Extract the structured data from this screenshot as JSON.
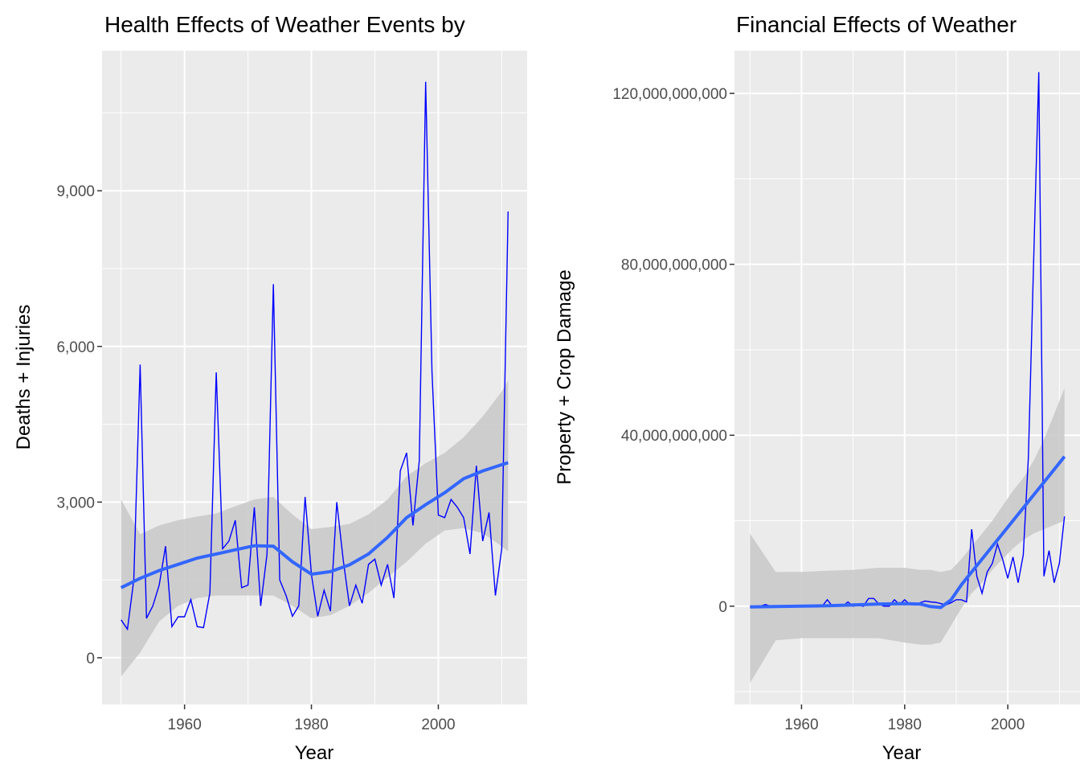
{
  "chart_data": [
    {
      "type": "line",
      "title": "Health Effects of Weather Events by",
      "xlabel": "Year",
      "ylabel": "Deaths + Injuries",
      "xlim": [
        1947,
        2014
      ],
      "ylim": [
        -900,
        11700
      ],
      "x_ticks": [
        1960,
        1980,
        2000
      ],
      "x_tick_labels": [
        "1960",
        "1980",
        "2000"
      ],
      "y_ticks": [
        0,
        3000,
        6000,
        9000
      ],
      "y_tick_labels": [
        "0",
        "3,000",
        "6,000",
        "9,000"
      ],
      "grid": true,
      "line_color": "#0000ff",
      "smooth_color": "#3366ff",
      "band_color": "#c8c8c8",
      "series": [
        {
          "x": [
            1950,
            1951,
            1952,
            1953,
            1954,
            1955,
            1956,
            1957,
            1958,
            1959,
            1960,
            1961,
            1962,
            1963,
            1964,
            1965,
            1966,
            1967,
            1968,
            1969,
            1970,
            1971,
            1972,
            1973,
            1974,
            1975,
            1976,
            1977,
            1978,
            1979,
            1980,
            1981,
            1982,
            1983,
            1984,
            1985,
            1986,
            1987,
            1988,
            1989,
            1990,
            1991,
            1992,
            1993,
            1994,
            1995,
            1996,
            1997,
            1998,
            1999,
            2000,
            2001,
            2002,
            2003,
            2004,
            2005,
            2006,
            2007,
            2008,
            2009,
            2010,
            2011
          ],
          "values": [
            730,
            550,
            1500,
            5650,
            760,
            1000,
            1400,
            2150,
            600,
            790,
            790,
            1120,
            600,
            580,
            1250,
            5500,
            2100,
            2250,
            2650,
            1350,
            1400,
            2900,
            1000,
            2000,
            7200,
            1500,
            1200,
            800,
            1000,
            3100,
            1600,
            800,
            1300,
            900,
            3000,
            1900,
            1000,
            1400,
            1050,
            1800,
            1900,
            1400,
            1800,
            1150,
            3600,
            3950,
            2550,
            3800,
            11100,
            5500,
            2750,
            2700,
            3050,
            2900,
            2700,
            2000,
            3700,
            2250,
            2800,
            1200,
            2100,
            8600
          ]
        },
        {
          "name": "smooth",
          "x": [
            1950,
            1953,
            1956,
            1959,
            1962,
            1965,
            1968,
            1971,
            1974,
            1977,
            1980,
            1983,
            1986,
            1989,
            1992,
            1995,
            1998,
            2001,
            2004,
            2007,
            2010,
            2011
          ],
          "values": [
            1350,
            1530,
            1680,
            1800,
            1920,
            2000,
            2080,
            2160,
            2150,
            1850,
            1610,
            1660,
            1790,
            2000,
            2320,
            2700,
            2950,
            3180,
            3450,
            3600,
            3720,
            3760
          ],
          "band_low": [
            -360,
            100,
            700,
            1000,
            1150,
            1200,
            1200,
            1200,
            1200,
            1000,
            760,
            820,
            1000,
            1250,
            1550,
            1850,
            2200,
            2450,
            2500,
            2400,
            2150,
            2050
          ],
          "band_high": [
            3050,
            2380,
            2550,
            2650,
            2720,
            2780,
            2920,
            3050,
            3100,
            2760,
            2480,
            2520,
            2580,
            2760,
            3050,
            3500,
            3750,
            3950,
            4250,
            4650,
            5130,
            5350
          ]
        }
      ]
    },
    {
      "type": "line",
      "title": "Financial Effects of Weather",
      "xlabel": "Year",
      "ylabel": "Property + Crop Damage",
      "xlim": [
        1947,
        2014
      ],
      "ylim": [
        -23000000000,
        130000000000
      ],
      "x_ticks": [
        1960,
        1980,
        2000
      ],
      "x_tick_labels": [
        "1960",
        "1980",
        "2000"
      ],
      "y_ticks": [
        0,
        40000000000,
        80000000000,
        120000000000
      ],
      "y_tick_labels": [
        "0",
        "40,000,000,000",
        "80,000,000,000",
        "120,000,000,000"
      ],
      "grid": true,
      "line_color": "#0000ff",
      "smooth_color": "#3366ff",
      "band_color": "#c8c8c8",
      "series": [
        {
          "x": [
            1950,
            1951,
            1952,
            1953,
            1954,
            1955,
            1956,
            1957,
            1958,
            1959,
            1960,
            1961,
            1962,
            1963,
            1964,
            1965,
            1966,
            1967,
            1968,
            1969,
            1970,
            1971,
            1972,
            1973,
            1974,
            1975,
            1976,
            1977,
            1978,
            1979,
            1980,
            1981,
            1982,
            1983,
            1984,
            1985,
            1986,
            1987,
            1988,
            1989,
            1990,
            1991,
            1992,
            1993,
            1994,
            1995,
            1996,
            1997,
            1998,
            1999,
            2000,
            2001,
            2002,
            2003,
            2004,
            2005,
            2006,
            2007,
            2008,
            2009,
            2010,
            2011
          ],
          "values": [
            0,
            0,
            0,
            400000000,
            0,
            0,
            0,
            0,
            0,
            0,
            0,
            0,
            0,
            0,
            0,
            1500000000,
            0,
            300000000,
            0,
            1000000000,
            0,
            200000000,
            0,
            1800000000,
            1800000000,
            500000000,
            0,
            0,
            1500000000,
            400000000,
            1500000000,
            400000000,
            300000000,
            800000000,
            1200000000,
            1000000000,
            900000000,
            600000000,
            300000000,
            800000000,
            1500000000,
            1500000000,
            1000000000,
            18000000000,
            7000000000,
            3000000000,
            8000000000,
            10000000000,
            14500000000,
            11000000000,
            6500000000,
            11500000000,
            5500000000,
            12000000000,
            35000000000,
            80000000000,
            125000000000,
            7000000000,
            13000000000,
            5500000000,
            10000000000,
            21000000000
          ]
        },
        {
          "name": "smooth",
          "x": [
            1950,
            1955,
            1960,
            1965,
            1970,
            1975,
            1980,
            1983,
            1985,
            1987,
            1989,
            1991,
            1993,
            1995,
            1997,
            1999,
            2001,
            2003,
            2005,
            2007,
            2009,
            2011
          ],
          "values": [
            -200000000,
            -100000000,
            0,
            100000000,
            300000000,
            500000000,
            600000000,
            500000000,
            -100000000,
            -300000000,
            1500000000,
            5000000000,
            8000000000,
            11000000000,
            14000000000,
            17000000000,
            20000000000,
            23000000000,
            26000000000,
            29000000000,
            32000000000,
            35000000000
          ],
          "band_low": [
            -18000000000,
            -8000000000,
            -7500000000,
            -7500000000,
            -7500000000,
            -7500000000,
            -8500000000,
            -9000000000,
            -9000000000,
            -8500000000,
            -4500000000,
            -500000000,
            3000000000,
            5500000000,
            8500000000,
            11000000000,
            13500000000,
            15500000000,
            17000000000,
            18000000000,
            19000000000,
            20000000000
          ],
          "band_high": [
            17000000000,
            8000000000,
            8000000000,
            8300000000,
            8500000000,
            9000000000,
            9000000000,
            8500000000,
            8500000000,
            8000000000,
            8500000000,
            11000000000,
            14000000000,
            17000000000,
            20000000000,
            23500000000,
            27000000000,
            30000000000,
            34000000000,
            39000000000,
            45000000000,
            51000000000
          ]
        }
      ]
    }
  ]
}
